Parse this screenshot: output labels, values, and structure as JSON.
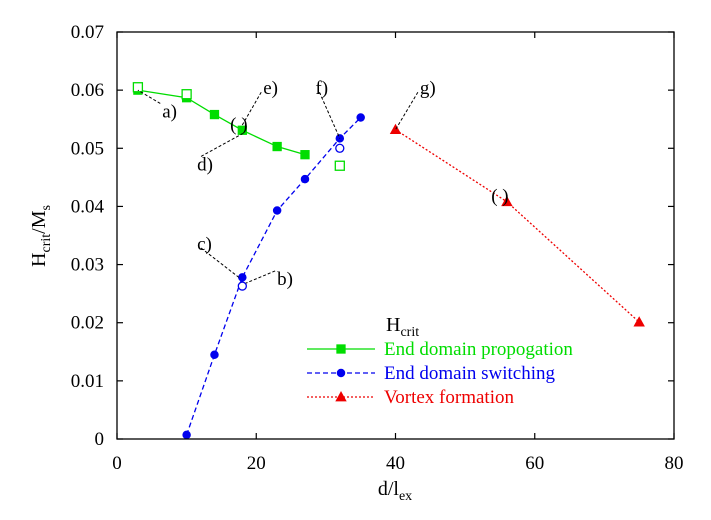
{
  "chart_data": {
    "type": "scatter",
    "xlabel": {
      "main": "d/l",
      "sub": "ex"
    },
    "ylabel": {
      "main": "H",
      "sub1": "crit",
      "mid": "/M",
      "sub2": "s"
    },
    "xlim": [
      0,
      80
    ],
    "ylim": [
      0,
      0.07
    ],
    "xticks": [
      "0",
      "20",
      "40",
      "60",
      "80"
    ],
    "yticks": [
      "0",
      "0.01",
      "0.02",
      "0.03",
      "0.04",
      "0.05",
      "0.06",
      "0.07"
    ],
    "grid": false,
    "legend": {
      "title": {
        "main": "H",
        "sub": "crit"
      },
      "position": "bottom-right",
      "entries": [
        {
          "label": "End domain propogation",
          "color": "#00dd00",
          "marker": "square",
          "line": "solid"
        },
        {
          "label": "End domain switching",
          "color": "#0000ee",
          "marker": "circle",
          "line": "dashed"
        },
        {
          "label": "Vortex formation",
          "color": "#ee0000",
          "marker": "triangle",
          "line": "dotted"
        }
      ]
    },
    "series": [
      {
        "name": "End domain propogation",
        "color": "#00dd00",
        "marker": "square",
        "line": "solid",
        "x": [
          3,
          10,
          14,
          18,
          23,
          27
        ],
        "y": [
          0.06,
          0.0587,
          0.0558,
          0.0531,
          0.0503,
          0.0489
        ]
      },
      {
        "name": "End domain switching",
        "color": "#0000ee",
        "marker": "circle",
        "line": "dashed",
        "x": [
          10,
          14,
          18,
          23,
          27,
          32,
          35
        ],
        "y": [
          0.0007,
          0.0145,
          0.0278,
          0.0393,
          0.0447,
          0.0517,
          0.0553
        ]
      },
      {
        "name": "Vortex formation",
        "color": "#ee0000",
        "marker": "triangle",
        "line": "dotted",
        "x": [
          40,
          56,
          75
        ],
        "y": [
          0.0532,
          0.0408,
          0.0201
        ]
      }
    ],
    "open_markers": [
      {
        "shape": "square",
        "color": "#00dd00",
        "x": 3,
        "y": 0.0605
      },
      {
        "shape": "square",
        "color": "#00dd00",
        "x": 10,
        "y": 0.0593
      },
      {
        "shape": "square",
        "color": "#00dd00",
        "x": 32,
        "y": 0.047
      },
      {
        "shape": "circle",
        "color": "#0000ee",
        "x": 18,
        "y": 0.0263
      },
      {
        "shape": "circle",
        "color": "#0000ee",
        "x": 32,
        "y": 0.05
      }
    ],
    "annotations": [
      {
        "text": "a)",
        "label_at": [
          6.5,
          0.0553
        ],
        "point_at": [
          3,
          0.06
        ]
      },
      {
        "text": "b)",
        "label_at": [
          23,
          0.0265
        ],
        "point_at": [
          18.5,
          0.0268
        ]
      },
      {
        "text": "c)",
        "label_at": [
          11.5,
          0.0325
        ],
        "point_at": [
          17.5,
          0.0278
        ]
      },
      {
        "text": "d)",
        "label_at": [
          11.5,
          0.0462
        ],
        "point_at": [
          18,
          0.0525
        ]
      },
      {
        "text": "e)",
        "label_at": [
          21,
          0.0593
        ],
        "point_at": [
          18,
          0.054
        ]
      },
      {
        "text": "f)",
        "label_at": [
          28.5,
          0.0593
        ],
        "point_at": [
          32,
          0.0517
        ]
      },
      {
        "text": "g)",
        "label_at": [
          43.5,
          0.0593
        ],
        "point_at": [
          40,
          0.0532
        ]
      },
      {
        "text": "( )",
        "label_at": [
          17.5,
          0.0531
        ],
        "point_at": null
      },
      {
        "text": "( )",
        "label_at": [
          55,
          0.0408
        ],
        "point_at": null
      }
    ]
  }
}
